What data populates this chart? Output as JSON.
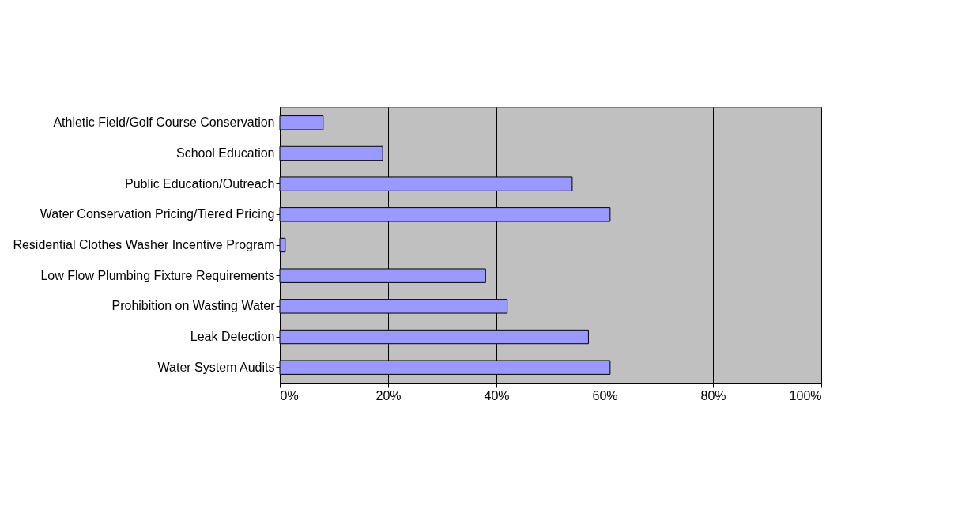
{
  "chart_data": {
    "type": "bar",
    "orientation": "horizontal",
    "categories": [
      "Athletic Field/Golf Course Conservation",
      "School Education",
      "Public Education/Outreach",
      "Water Conservation Pricing/Tiered Pricing",
      "Residential Clothes Washer Incentive Program",
      "Low Flow Plumbing Fixture Requirements",
      "Prohibition on Wasting Water",
      "Leak Detection",
      "Water System Audits"
    ],
    "values": [
      8,
      19,
      54,
      61,
      1,
      38,
      42,
      57,
      61
    ],
    "color": "#9999ff",
    "xlim": [
      0,
      100
    ],
    "xticks": [
      {
        "value": 0,
        "label": "0%"
      },
      {
        "value": 20,
        "label": "20%"
      },
      {
        "value": 40,
        "label": "40%"
      },
      {
        "value": 60,
        "label": "60%"
      },
      {
        "value": 80,
        "label": "80%"
      },
      {
        "value": 100,
        "label": "100%"
      }
    ],
    "grid": "x"
  }
}
